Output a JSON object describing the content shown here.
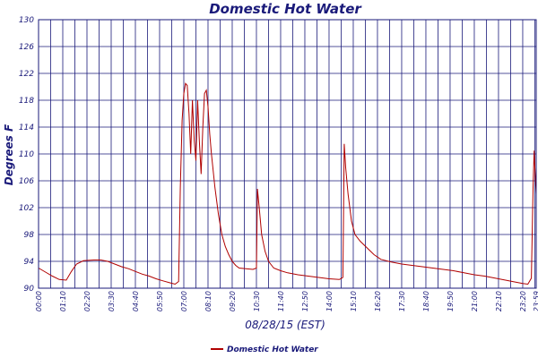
{
  "chart_data": {
    "type": "line",
    "title": "Domestic Hot Water",
    "xlabel": "08/28/15 (EST)",
    "ylabel": "Degrees F",
    "ylim": [
      90,
      130
    ],
    "yticks": [
      "90",
      "94",
      "98",
      "102",
      "106",
      "110",
      "114",
      "118",
      "122",
      "126",
      "130"
    ],
    "xlim": [
      "00:00",
      "23:59"
    ],
    "xticks": [
      "00:00",
      "01:10",
      "02:20",
      "03:30",
      "04:40",
      "05:50",
      "07:00",
      "08:10",
      "09:20",
      "10:30",
      "11:40",
      "12:50",
      "14:00",
      "15:10",
      "16:20",
      "17:30",
      "18:40",
      "19:50",
      "21:00",
      "22:10",
      "23:20",
      "23:59"
    ],
    "grid": true,
    "legend": "bottom",
    "colors": {
      "series": "#b00000",
      "grid": "#1a1a7a",
      "text": "#1a1a7a"
    },
    "series": [
      {
        "name": "Domestic Hot Water",
        "points": [
          [
            "00:00",
            93.0
          ],
          [
            "00:20",
            92.4
          ],
          [
            "00:40",
            91.8
          ],
          [
            "01:00",
            91.3
          ],
          [
            "01:20",
            91.2
          ],
          [
            "01:35",
            92.5
          ],
          [
            "01:50",
            93.6
          ],
          [
            "02:10",
            94.1
          ],
          [
            "02:40",
            94.2
          ],
          [
            "03:00",
            94.2
          ],
          [
            "03:20",
            94.0
          ],
          [
            "03:40",
            93.6
          ],
          [
            "04:00",
            93.2
          ],
          [
            "04:20",
            92.9
          ],
          [
            "04:40",
            92.5
          ],
          [
            "05:00",
            92.1
          ],
          [
            "05:20",
            91.8
          ],
          [
            "05:40",
            91.4
          ],
          [
            "06:00",
            91.1
          ],
          [
            "06:20",
            90.8
          ],
          [
            "06:35",
            90.6
          ],
          [
            "06:45",
            91.0
          ],
          [
            "06:50",
            105.0
          ],
          [
            "06:55",
            115.0
          ],
          [
            "07:00",
            119.0
          ],
          [
            "07:05",
            120.5
          ],
          [
            "07:10",
            120.2
          ],
          [
            "07:15",
            116.0
          ],
          [
            "07:20",
            110.0
          ],
          [
            "07:25",
            118.0
          ],
          [
            "07:30",
            112.0
          ],
          [
            "07:35",
            109.0
          ],
          [
            "07:40",
            118.0
          ],
          [
            "07:45",
            112.0
          ],
          [
            "07:50",
            107.0
          ],
          [
            "07:55",
            114.0
          ],
          [
            "08:00",
            119.0
          ],
          [
            "08:05",
            119.5
          ],
          [
            "08:10",
            117.0
          ],
          [
            "08:15",
            113.0
          ],
          [
            "08:20",
            110.0
          ],
          [
            "08:30",
            105.0
          ],
          [
            "08:40",
            101.0
          ],
          [
            "08:50",
            98.0
          ],
          [
            "09:00",
            96.2
          ],
          [
            "09:10",
            95.0
          ],
          [
            "09:20",
            94.0
          ],
          [
            "09:30",
            93.4
          ],
          [
            "09:40",
            93.0
          ],
          [
            "10:00",
            92.9
          ],
          [
            "10:20",
            92.8
          ],
          [
            "10:30",
            93.0
          ],
          [
            "10:33",
            104.8
          ],
          [
            "10:38",
            102.0
          ],
          [
            "10:45",
            98.0
          ],
          [
            "10:55",
            95.5
          ],
          [
            "11:05",
            94.0
          ],
          [
            "11:20",
            93.0
          ],
          [
            "11:40",
            92.6
          ],
          [
            "12:00",
            92.3
          ],
          [
            "12:30",
            92.0
          ],
          [
            "13:00",
            91.8
          ],
          [
            "13:30",
            91.6
          ],
          [
            "14:00",
            91.4
          ],
          [
            "14:30",
            91.3
          ],
          [
            "14:40",
            91.6
          ],
          [
            "14:44",
            111.5
          ],
          [
            "14:48",
            108.0
          ],
          [
            "14:55",
            104.0
          ],
          [
            "15:05",
            100.0
          ],
          [
            "15:15",
            98.0
          ],
          [
            "15:30",
            97.0
          ],
          [
            "15:50",
            96.0
          ],
          [
            "16:10",
            95.0
          ],
          [
            "16:30",
            94.3
          ],
          [
            "17:00",
            93.9
          ],
          [
            "17:30",
            93.6
          ],
          [
            "18:00",
            93.4
          ],
          [
            "18:30",
            93.2
          ],
          [
            "19:00",
            93.0
          ],
          [
            "19:30",
            92.8
          ],
          [
            "20:00",
            92.6
          ],
          [
            "20:30",
            92.3
          ],
          [
            "21:00",
            92.0
          ],
          [
            "21:30",
            91.8
          ],
          [
            "22:00",
            91.5
          ],
          [
            "22:30",
            91.2
          ],
          [
            "23:00",
            90.9
          ],
          [
            "23:20",
            90.7
          ],
          [
            "23:35",
            90.6
          ],
          [
            "23:45",
            91.5
          ],
          [
            "23:50",
            105.0
          ],
          [
            "23:53",
            110.5
          ],
          [
            "23:55",
            108.0
          ],
          [
            "23:59",
            104.0
          ]
        ]
      }
    ]
  }
}
